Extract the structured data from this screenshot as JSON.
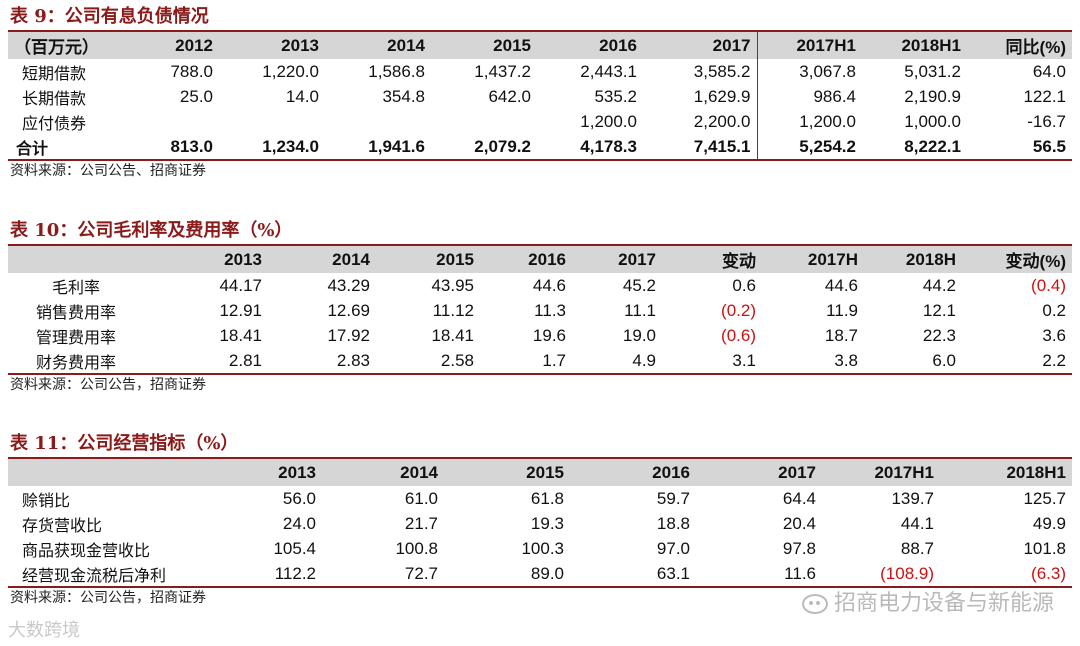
{
  "table9": {
    "title": "表 9：公司有息负债情况",
    "columns": [
      "（百万元）",
      "2012",
      "2013",
      "2014",
      "2015",
      "2016",
      "2017",
      "2017H1",
      "2018H1",
      "同比(%)"
    ],
    "rows": [
      {
        "label": "短期借款",
        "values": [
          "788.0",
          "1,220.0",
          "1,586.8",
          "1,437.2",
          "2,443.1",
          "3,585.2",
          "3,067.8",
          "5,031.2",
          "64.0"
        ]
      },
      {
        "label": "长期借款",
        "values": [
          "25.0",
          "14.0",
          "354.8",
          "642.0",
          "535.2",
          "1,629.9",
          "986.4",
          "2,190.9",
          "122.1"
        ]
      },
      {
        "label": "应付债券",
        "values": [
          "",
          "",
          "",
          "",
          "1,200.0",
          "2,200.0",
          "1,200.0",
          "1,000.0",
          "-16.7"
        ]
      },
      {
        "label": "合计",
        "values": [
          "813.0",
          "1,234.0",
          "1,941.6",
          "2,079.2",
          "4,178.3",
          "7,415.1",
          "5,254.2",
          "8,222.1",
          "56.5"
        ]
      }
    ],
    "source": "资料来源：公司公告、招商证券"
  },
  "table10": {
    "title": "表 10：公司毛利率及费用率（%）",
    "columns": [
      "",
      "2013",
      "2014",
      "2015",
      "2016",
      "2017",
      "变动",
      "2017H",
      "2018H",
      "变动(%)"
    ],
    "rows": [
      {
        "label": "毛利率",
        "values": [
          "44.17",
          "43.29",
          "43.95",
          "44.6",
          "45.2",
          "0.6",
          "44.6",
          "44.2",
          "(0.4)"
        ]
      },
      {
        "label": "销售费用率",
        "values": [
          "12.91",
          "12.69",
          "11.12",
          "11.3",
          "11.1",
          "(0.2)",
          "11.9",
          "12.1",
          "0.2"
        ]
      },
      {
        "label": "管理费用率",
        "values": [
          "18.41",
          "17.92",
          "18.41",
          "19.6",
          "19.0",
          "(0.6)",
          "18.7",
          "22.3",
          "3.6"
        ]
      },
      {
        "label": "财务费用率",
        "values": [
          "2.81",
          "2.83",
          "2.58",
          "1.7",
          "4.9",
          "3.1",
          "3.8",
          "6.0",
          "2.2"
        ]
      }
    ],
    "source": "资料来源：公司公告，招商证券"
  },
  "table11": {
    "title": "表 11：公司经营指标（%）",
    "columns": [
      "",
      "2013",
      "2014",
      "2015",
      "2016",
      "2017",
      "2017H1",
      "2018H1"
    ],
    "rows": [
      {
        "label": "赊销比",
        "values": [
          "56.0",
          "61.0",
          "61.8",
          "59.7",
          "64.4",
          "139.7",
          "125.7"
        ]
      },
      {
        "label": "存货营收比",
        "values": [
          "24.0",
          "21.7",
          "19.3",
          "18.8",
          "20.4",
          "44.1",
          "49.9"
        ]
      },
      {
        "label": "商品获现金营收比",
        "values": [
          "105.4",
          "100.8",
          "100.3",
          "97.0",
          "97.8",
          "88.7",
          "101.8"
        ]
      },
      {
        "label": "经营现金流税后净利",
        "values": [
          "112.2",
          "72.7",
          "89.0",
          "63.1",
          "11.6",
          "(108.9)",
          "(6.3)"
        ]
      }
    ],
    "source": "资料来源：公司公告，招商证券"
  },
  "watermarks": {
    "right": "招商电力设备与新能源",
    "left": "大数跨境"
  },
  "colors": {
    "accent": "#8b1a1a",
    "header_bg": "#d6d6d6",
    "negative": "#cc1111"
  }
}
